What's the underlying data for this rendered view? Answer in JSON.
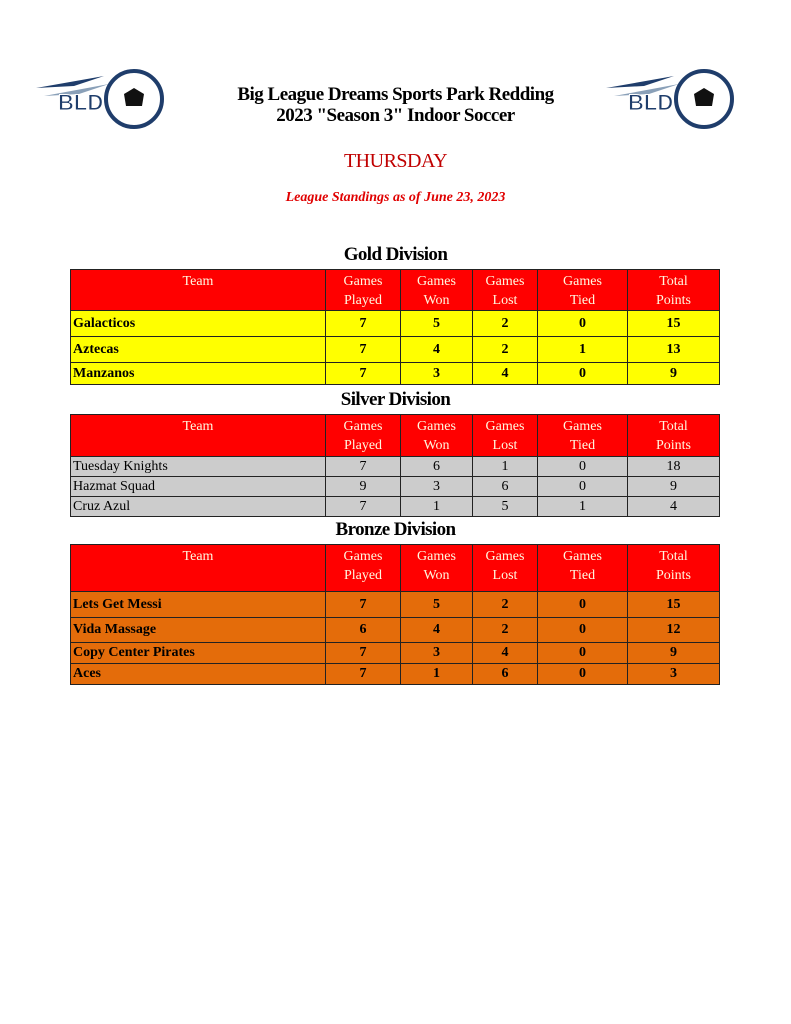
{
  "header": {
    "logo_text": "BLD",
    "title": "Big League Dreams Sports Park Redding",
    "subtitle": "2023 \"Season 3\" Indoor Soccer",
    "day": "THURSDAY",
    "as_of": "League Standings as of June 23, 2023"
  },
  "columns": {
    "team": "Team",
    "played": [
      "Games",
      "Played"
    ],
    "won": [
      "Games",
      "Won"
    ],
    "lost": [
      "Games",
      "Lost"
    ],
    "tied": [
      "Games",
      "Tied"
    ],
    "points": [
      "Total",
      "Points"
    ]
  },
  "colors": {
    "header": "#ff0000",
    "gold": "#ffff00",
    "silver": "#cccccc",
    "bronze": "#e46c0a",
    "title_red": "#c00000"
  },
  "divisions": [
    {
      "name": "Gold Division",
      "rows": [
        [
          "Galacticos",
          "7",
          "5",
          "2",
          "0",
          "15"
        ],
        [
          "Aztecas",
          "7",
          "4",
          "2",
          "1",
          "13"
        ],
        [
          "Manzanos",
          "7",
          "3",
          "4",
          "0",
          "9"
        ]
      ]
    },
    {
      "name": "Silver Division",
      "rows": [
        [
          "Tuesday Knights",
          "7",
          "6",
          "1",
          "0",
          "18"
        ],
        [
          "Hazmat Squad",
          "9",
          "3",
          "6",
          "0",
          "9"
        ],
        [
          "Cruz Azul",
          "7",
          "1",
          "5",
          "1",
          "4"
        ]
      ]
    },
    {
      "name": "Bronze Division",
      "rows": [
        [
          "Lets Get Messi",
          "7",
          "5",
          "2",
          "0",
          "15"
        ],
        [
          "Vida Massage",
          "6",
          "4",
          "2",
          "0",
          "12"
        ],
        [
          "Copy Center Pirates",
          "7",
          "3",
          "4",
          "0",
          "9"
        ],
        [
          "Aces",
          "7",
          "1",
          "6",
          "0",
          "3"
        ]
      ]
    }
  ]
}
